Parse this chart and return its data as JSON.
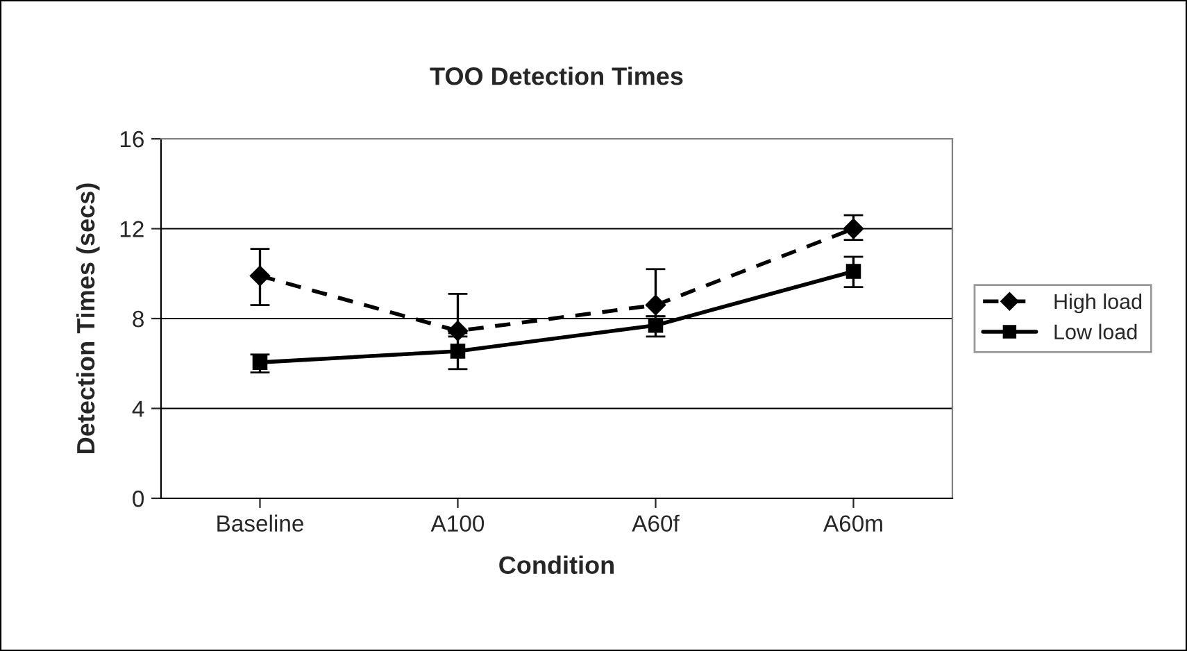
{
  "chart_data": {
    "type": "line",
    "title": "TOO Detection Times",
    "xlabel": "Condition",
    "ylabel": "Detection Times (secs)",
    "categories": [
      "Baseline",
      "A100",
      "A60f",
      "A60m"
    ],
    "series": [
      {
        "name": "High load",
        "color": "#000000",
        "values": [
          9.9,
          7.45,
          8.6,
          12.0
        ],
        "errors": [
          [
            8.6,
            11.1
          ],
          [
            7.2,
            9.1
          ],
          [
            8.1,
            10.2
          ],
          [
            11.5,
            12.6
          ]
        ],
        "marker": "diamond",
        "line_style": "dashed"
      },
      {
        "name": "Low load",
        "color": "#000000",
        "values": [
          6.05,
          6.55,
          7.7,
          10.1
        ],
        "errors": [
          [
            5.6,
            6.4
          ],
          [
            5.75,
            7.35
          ],
          [
            7.2,
            8.1
          ],
          [
            9.4,
            10.75
          ]
        ],
        "marker": "square",
        "line_style": "solid"
      }
    ],
    "ylim": [
      0,
      16
    ],
    "yticks": [
      0,
      4,
      8,
      12,
      16
    ],
    "grid": "y",
    "legend": "right"
  }
}
